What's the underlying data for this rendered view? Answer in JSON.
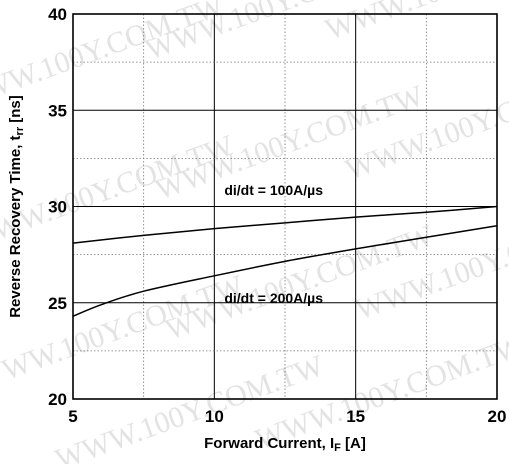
{
  "watermark": "WWW.100Y.COM.TW",
  "chart_data": {
    "type": "line",
    "title": "",
    "xlabel": "Forward Current, I",
    "xlabel_sub": "F",
    "xlabel_unit": " [A]",
    "ylabel": "Reverse Recovery Time, t",
    "ylabel_sub": "rr",
    "ylabel_unit": " [ns]",
    "xlim": [
      5,
      20
    ],
    "ylim": [
      20,
      40
    ],
    "xticks": [
      5,
      10,
      15,
      20
    ],
    "yticks": [
      20,
      25,
      30,
      35,
      40
    ],
    "x_minor_step": 2.5,
    "y_minor_step": 2.5,
    "grid": true,
    "series": [
      {
        "name": "di/dt = 100A/µs",
        "x": [
          5,
          7.5,
          10,
          12.5,
          15,
          17.5,
          20
        ],
        "y": [
          28.1,
          28.5,
          28.85,
          29.15,
          29.45,
          29.7,
          30.0
        ]
      },
      {
        "name": "di/dt = 200A/µs",
        "x": [
          5,
          6,
          7.5,
          10,
          12.5,
          15,
          17.5,
          20
        ],
        "y": [
          24.3,
          24.9,
          25.6,
          26.4,
          27.15,
          27.8,
          28.4,
          29.0
        ]
      }
    ],
    "annotations": [
      {
        "text": "di/dt = 100A/µs",
        "x": 10,
        "y": 30.6
      },
      {
        "text": "di/dt = 200A/µs",
        "x": 10,
        "y": 25.0
      }
    ]
  }
}
